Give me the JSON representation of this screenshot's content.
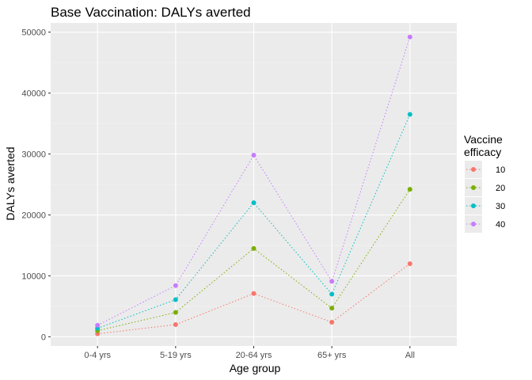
{
  "chart_data": {
    "type": "line",
    "title": "Base Vaccination: DALYs averted",
    "xlabel": "Age group",
    "ylabel": "DALYs averted",
    "categories": [
      "0-4 yrs",
      "5-19 yrs",
      "20-64 yrs",
      "65+ yrs",
      "All"
    ],
    "ylim": [
      -1500,
      51500
    ],
    "yticks": [
      0,
      10000,
      20000,
      30000,
      40000,
      50000
    ],
    "ytick_labels": [
      "0",
      "10000",
      "20000",
      "30000",
      "40000",
      "50000"
    ],
    "grid": true,
    "line_style": "dotted",
    "legend": {
      "title_lines": [
        "Vaccine",
        "efficacy"
      ],
      "placement": "right"
    },
    "series": [
      {
        "name": "10",
        "color": "#F8766D",
        "values": [
          500,
          2000,
          7100,
          2400,
          12000
        ]
      },
      {
        "name": "20",
        "color": "#7CAE00",
        "values": [
          1000,
          4000,
          14500,
          4700,
          24200
        ]
      },
      {
        "name": "30",
        "color": "#00BFC4",
        "values": [
          1400,
          6100,
          22000,
          7000,
          36500
        ]
      },
      {
        "name": "40",
        "color": "#C77CFF",
        "values": [
          1900,
          8400,
          29800,
          9100,
          49200
        ]
      }
    ]
  }
}
